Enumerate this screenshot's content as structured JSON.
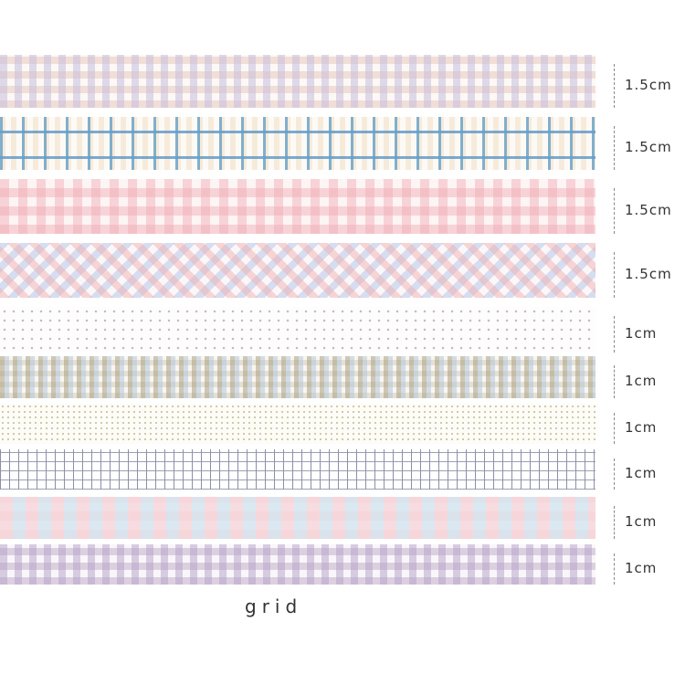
{
  "tapes": [
    {
      "width": "1.5cm"
    },
    {
      "width": "1.5cm"
    },
    {
      "width": "1.5cm"
    },
    {
      "width": "1.5cm"
    },
    {
      "width": "1cm"
    },
    {
      "width": "1cm"
    },
    {
      "width": "1cm"
    },
    {
      "width": "1cm"
    },
    {
      "width": "1cm"
    },
    {
      "width": "1cm"
    }
  ],
  "caption": "grid"
}
